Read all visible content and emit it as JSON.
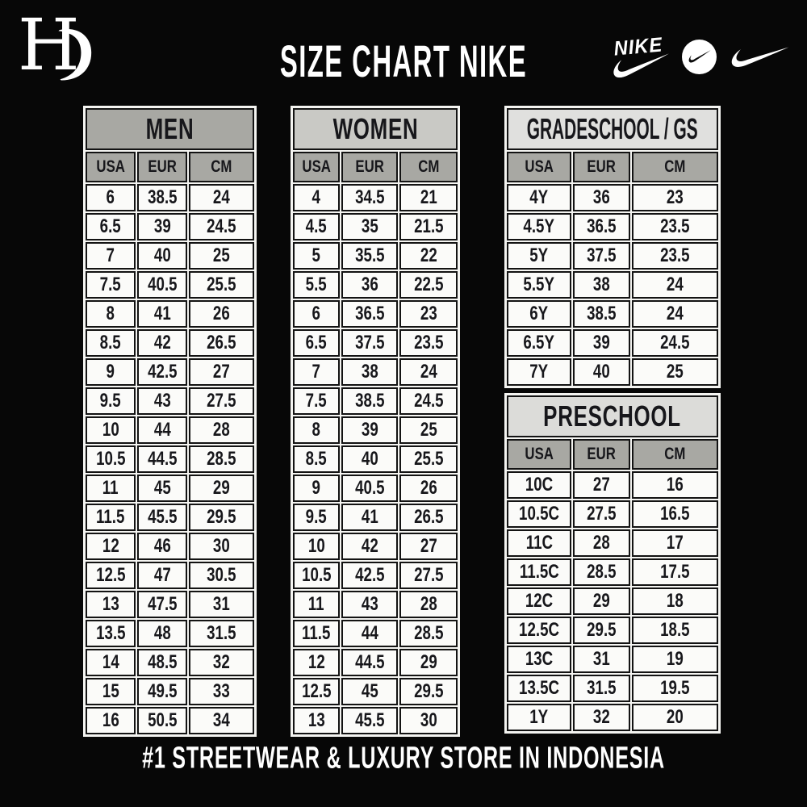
{
  "header": {
    "title": "SIZE CHART NIKE",
    "brand": {
      "monogram_letter": "H",
      "monogram_shape": "crescent-g"
    },
    "nike_wordmark": "NIKE"
  },
  "footer": {
    "tagline": "#1 STREETWEAR & LUXURY STORE IN INDONESIA"
  },
  "colors": {
    "background": "#070707",
    "text_light": "#ffffff",
    "cell_text": "#17171b",
    "cell_bg": "#fbfbf9",
    "frame_bg": "#f4f4f1",
    "border": "#131313",
    "men_header_bg": "#a8a8a3",
    "women_header_bg": "#c9c9c5",
    "gradeschool_header_bg": "#e0e0de",
    "preschool_header_bg": "#dcdcd9",
    "subheader_bg": "#a8a8a3"
  },
  "chart_data": [
    {
      "type": "table",
      "key": "men",
      "title": "MEN",
      "columns": [
        "USA",
        "EUR",
        "CM"
      ],
      "rows": [
        [
          "6",
          "38.5",
          "24"
        ],
        [
          "6.5",
          "39",
          "24.5"
        ],
        [
          "7",
          "40",
          "25"
        ],
        [
          "7.5",
          "40.5",
          "25.5"
        ],
        [
          "8",
          "41",
          "26"
        ],
        [
          "8.5",
          "42",
          "26.5"
        ],
        [
          "9",
          "42.5",
          "27"
        ],
        [
          "9.5",
          "43",
          "27.5"
        ],
        [
          "10",
          "44",
          "28"
        ],
        [
          "10.5",
          "44.5",
          "28.5"
        ],
        [
          "11",
          "45",
          "29"
        ],
        [
          "11.5",
          "45.5",
          "29.5"
        ],
        [
          "12",
          "46",
          "30"
        ],
        [
          "12.5",
          "47",
          "30.5"
        ],
        [
          "13",
          "47.5",
          "31"
        ],
        [
          "13.5",
          "48",
          "31.5"
        ],
        [
          "14",
          "48.5",
          "32"
        ],
        [
          "15",
          "49.5",
          "33"
        ],
        [
          "16",
          "50.5",
          "34"
        ]
      ]
    },
    {
      "type": "table",
      "key": "women",
      "title": "WOMEN",
      "columns": [
        "USA",
        "EUR",
        "CM"
      ],
      "rows": [
        [
          "4",
          "34.5",
          "21"
        ],
        [
          "4.5",
          "35",
          "21.5"
        ],
        [
          "5",
          "35.5",
          "22"
        ],
        [
          "5.5",
          "36",
          "22.5"
        ],
        [
          "6",
          "36.5",
          "23"
        ],
        [
          "6.5",
          "37.5",
          "23.5"
        ],
        [
          "7",
          "38",
          "24"
        ],
        [
          "7.5",
          "38.5",
          "24.5"
        ],
        [
          "8",
          "39",
          "25"
        ],
        [
          "8.5",
          "40",
          "25.5"
        ],
        [
          "9",
          "40.5",
          "26"
        ],
        [
          "9.5",
          "41",
          "26.5"
        ],
        [
          "10",
          "42",
          "27"
        ],
        [
          "10.5",
          "42.5",
          "27.5"
        ],
        [
          "11",
          "43",
          "28"
        ],
        [
          "11.5",
          "44",
          "28.5"
        ],
        [
          "12",
          "44.5",
          "29"
        ],
        [
          "12.5",
          "45",
          "29.5"
        ],
        [
          "13",
          "45.5",
          "30"
        ]
      ]
    },
    {
      "type": "table",
      "key": "gradeschool",
      "title": "GRADESCHOOL / GS",
      "columns": [
        "USA",
        "EUR",
        "CM"
      ],
      "rows": [
        [
          "4Y",
          "36",
          "23"
        ],
        [
          "4.5Y",
          "36.5",
          "23.5"
        ],
        [
          "5Y",
          "37.5",
          "23.5"
        ],
        [
          "5.5Y",
          "38",
          "24"
        ],
        [
          "6Y",
          "38.5",
          "24"
        ],
        [
          "6.5Y",
          "39",
          "24.5"
        ],
        [
          "7Y",
          "40",
          "25"
        ]
      ]
    },
    {
      "type": "table",
      "key": "preschool",
      "title": "PRESCHOOL",
      "columns": [
        "USA",
        "EUR",
        "CM"
      ],
      "rows": [
        [
          "10C",
          "27",
          "16"
        ],
        [
          "10.5C",
          "27.5",
          "16.5"
        ],
        [
          "11C",
          "28",
          "17"
        ],
        [
          "11.5C",
          "28.5",
          "17.5"
        ],
        [
          "12C",
          "29",
          "18"
        ],
        [
          "12.5C",
          "29.5",
          "18.5"
        ],
        [
          "13C",
          "31",
          "19"
        ],
        [
          "13.5C",
          "31.5",
          "19.5"
        ],
        [
          "1Y",
          "32",
          "20"
        ]
      ]
    }
  ]
}
